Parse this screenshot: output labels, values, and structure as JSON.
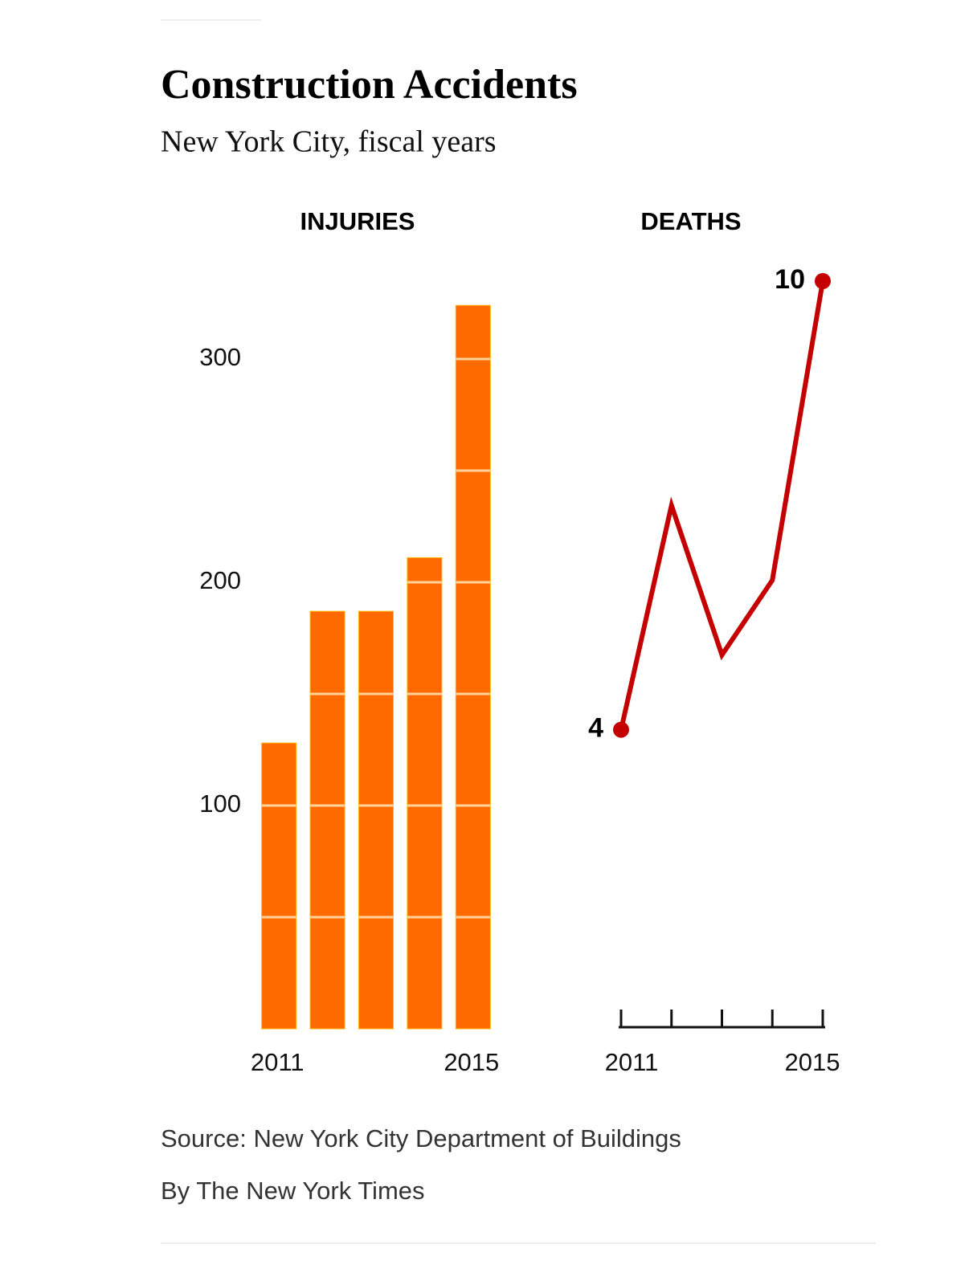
{
  "title": "Construction Accidents",
  "subtitle": "New York City, fiscal years",
  "chart_data": [
    {
      "type": "bar",
      "title": "INJURIES",
      "categories": [
        "2011",
        null,
        null,
        null,
        "2015"
      ],
      "values": [
        128,
        187,
        187,
        211,
        324
      ],
      "color": "#ff6a00",
      "ylim": [
        0,
        350
      ],
      "yticks": [
        100,
        200,
        300
      ],
      "minor_yticks": [
        50,
        100,
        150,
        200,
        250,
        300
      ]
    },
    {
      "type": "line",
      "title": "DEATHS",
      "categories": [
        "2011",
        null,
        null,
        null,
        "2015"
      ],
      "values": [
        4,
        7,
        5,
        6,
        10
      ],
      "value_labels": [
        "4",
        null,
        null,
        null,
        "10"
      ],
      "color": "#c40000",
      "ylim": [
        0,
        10
      ]
    }
  ],
  "source": "Source: New York City Department of Buildings",
  "credit": "By The New York Times"
}
